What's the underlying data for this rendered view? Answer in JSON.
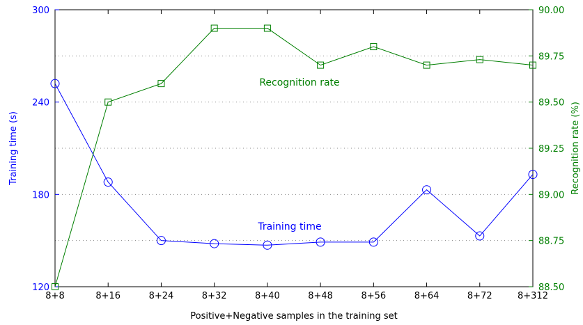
{
  "chart_data": {
    "type": "line",
    "categories": [
      "8+8",
      "8+16",
      "8+24",
      "8+32",
      "8+40",
      "8+48",
      "8+56",
      "8+64",
      "8+72",
      "8+312"
    ],
    "xlabel": "Positive+Negative samples in the training set",
    "series": [
      {
        "name": "Training time",
        "axis": "left",
        "marker": "circle",
        "color": "#0000ff",
        "values": [
          252,
          188,
          150,
          148,
          147,
          149,
          149,
          183,
          153,
          193
        ]
      },
      {
        "name": "Recognition rate",
        "axis": "right",
        "marker": "square",
        "color": "#007f00",
        "values": [
          88.5,
          89.5,
          89.6,
          89.9,
          89.9,
          89.7,
          89.8,
          89.7,
          89.73,
          89.7
        ]
      }
    ],
    "left_axis": {
      "label": "Training time (s)",
      "ylim": [
        120,
        300
      ],
      "ticks": [
        "120",
        "180",
        "240",
        "300"
      ],
      "tick_values": [
        120,
        180,
        240,
        300
      ],
      "color": "#0000ff"
    },
    "right_axis": {
      "label": "Recognition rate (%)",
      "ylim": [
        88.5,
        90.0
      ],
      "ticks": [
        "88.50",
        "88.75",
        "89.00",
        "89.25",
        "89.50",
        "89.75",
        "90.00"
      ],
      "tick_values": [
        88.5,
        88.75,
        89.0,
        89.25,
        89.5,
        89.75,
        90.0
      ],
      "color": "#007f00"
    },
    "grid": "horizontal dotted",
    "annotations": {
      "recognition": "Recognition rate",
      "training": "Training time"
    }
  }
}
